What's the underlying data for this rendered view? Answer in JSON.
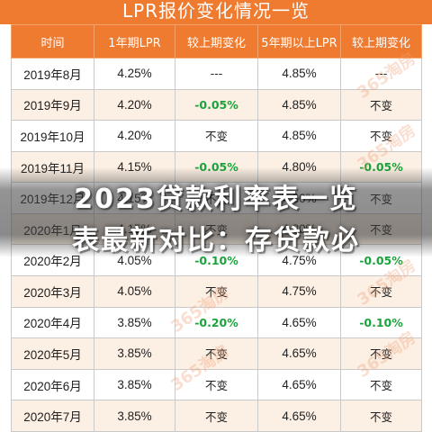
{
  "title": "LPR报价变化情况一览",
  "headers": [
    "时间",
    "1年期LPR",
    "较上期变化",
    "5年期以上LPR",
    "较上期变化"
  ],
  "rows": [
    {
      "time": "2019年8月",
      "lpr1": "4.25%",
      "chg1": "---",
      "lpr5": "4.85%",
      "chg5": "---"
    },
    {
      "time": "2019年9月",
      "lpr1": "4.20%",
      "chg1": "-0.05%",
      "lpr5": "4.85%",
      "chg5": "不变"
    },
    {
      "time": "2019年10月",
      "lpr1": "4.20%",
      "chg1": "不变",
      "lpr5": "4.85%",
      "chg5": "不变"
    },
    {
      "time": "2019年11月",
      "lpr1": "4.15%",
      "chg1": "-0.05%",
      "lpr5": "4.80%",
      "chg5": "-0.05%"
    },
    {
      "time": "2019年12月",
      "lpr1": "4.15%",
      "chg1": "不变",
      "lpr5": "4.80%",
      "chg5": "不变"
    },
    {
      "time": "2020年1月",
      "lpr1": "4.15%",
      "chg1": "不变",
      "lpr5": "4.80%",
      "chg5": "不变"
    },
    {
      "time": "2020年2月",
      "lpr1": "4.05%",
      "chg1": "-0.10%",
      "lpr5": "4.75%",
      "chg5": "-0.05%"
    },
    {
      "time": "2020年3月",
      "lpr1": "4.05%",
      "chg1": "不变",
      "lpr5": "4.75%",
      "chg5": "不变"
    },
    {
      "time": "2020年4月",
      "lpr1": "3.85%",
      "chg1": "-0.20%",
      "lpr5": "4.65%",
      "chg5": "-0.10%"
    },
    {
      "time": "2020年5月",
      "lpr1": "3.85%",
      "chg1": "不变",
      "lpr5": "4.65%",
      "chg5": "不变"
    },
    {
      "time": "2020年6月",
      "lpr1": "3.85%",
      "chg1": "不变",
      "lpr5": "4.65%",
      "chg5": "不变"
    },
    {
      "time": "2020年7月",
      "lpr1": "3.85%",
      "chg1": "不变",
      "lpr5": "4.65%",
      "chg5": "不变"
    }
  ],
  "caption": {
    "line1": "2023贷款利率表一览",
    "line2": "表最新对比：存贷款必"
  },
  "watermark": "365淘房",
  "colors": {
    "header_bg": "#ee7b30",
    "row_alt": "#fcefe3",
    "decrease": "#1aa33c"
  }
}
